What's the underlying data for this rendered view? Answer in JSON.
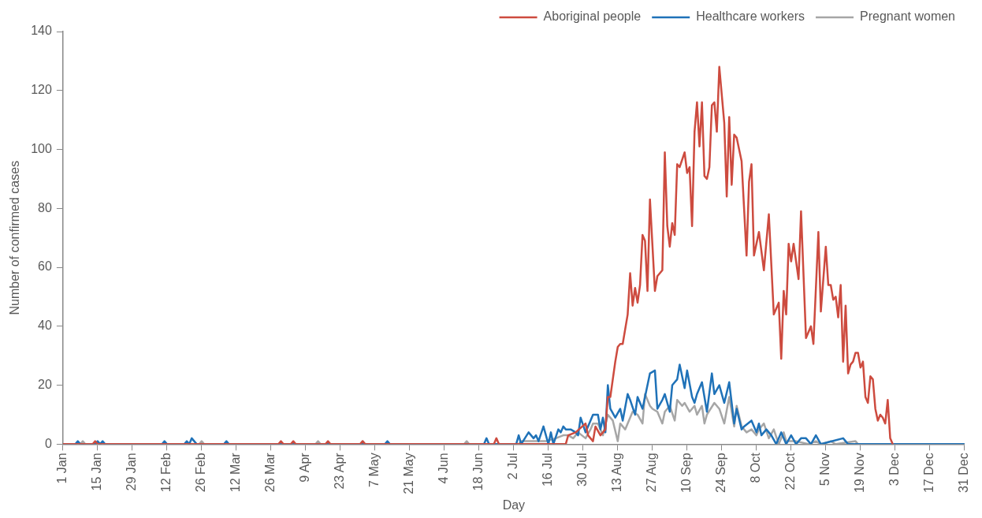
{
  "chart_data": {
    "type": "line",
    "xlabel": "Day",
    "ylabel": "Number of confirmed cases",
    "legend": "top right",
    "grid": false,
    "marker": "none",
    "line_style": "solid",
    "xlim": [
      "--01-01",
      "--12-31"
    ],
    "xticks": [
      {
        "value": "--01-01",
        "label": "1 Jan"
      },
      {
        "value": "--01-15",
        "label": "15 Jan"
      },
      {
        "value": "--01-29",
        "label": "29 Jan"
      },
      {
        "value": "--02-12",
        "label": "12 Feb"
      },
      {
        "value": "--02-26",
        "label": "26 Feb"
      },
      {
        "value": "--03-12",
        "label": "12 Mar"
      },
      {
        "value": "--03-26",
        "label": "26 Mar"
      },
      {
        "value": "--04-09",
        "label": "9 Apr"
      },
      {
        "value": "--04-23",
        "label": "23 Apr"
      },
      {
        "value": "--05-07",
        "label": "7 May"
      },
      {
        "value": "--05-21",
        "label": "21 May"
      },
      {
        "value": "--06-04",
        "label": "4 Jun"
      },
      {
        "value": "--06-18",
        "label": "18 Jun"
      },
      {
        "value": "--07-02",
        "label": "2 Jul"
      },
      {
        "value": "--07-16",
        "label": "16 Jul"
      },
      {
        "value": "--07-30",
        "label": "30 Jul"
      },
      {
        "value": "--08-13",
        "label": "13 Aug"
      },
      {
        "value": "--08-27",
        "label": "27 Aug"
      },
      {
        "value": "--09-10",
        "label": "10 Sep"
      },
      {
        "value": "--09-24",
        "label": "24 Sep"
      },
      {
        "value": "--10-08",
        "label": "8 Oct"
      },
      {
        "value": "--10-22",
        "label": "22 Oct"
      },
      {
        "value": "--11-05",
        "label": "5 Nov"
      },
      {
        "value": "--11-19",
        "label": "19 Nov"
      },
      {
        "value": "--12-03",
        "label": "3 Dec"
      },
      {
        "value": "--12-17",
        "label": "17 Dec"
      },
      {
        "value": "--12-31",
        "label": "31 Dec"
      }
    ],
    "ylim": [
      0,
      140
    ],
    "yticks": [
      0,
      20,
      40,
      60,
      80,
      100,
      120,
      140
    ],
    "series": [
      {
        "name": "Aboriginal people",
        "color": "#cd4b3f",
        "x": [
          "--01-01",
          "--01-13",
          "--01-14",
          "--01-15",
          "--03-29",
          "--03-30",
          "--03-31",
          "--04-03",
          "--04-04",
          "--04-05",
          "--04-17",
          "--04-18",
          "--04-19",
          "--05-01",
          "--05-02",
          "--05-03",
          "--06-24",
          "--06-25",
          "--06-26",
          "--07-23",
          "--07-24",
          "--07-27",
          "--07-31",
          "--08-01",
          "--08-03",
          "--08-04",
          "--08-06",
          "--08-08",
          "--08-09",
          "--08-10",
          "--08-12",
          "--08-13",
          "--08-14",
          "--08-15",
          "--08-17",
          "--08-18",
          "--08-19",
          "--08-20",
          "--08-21",
          "--08-22",
          "--08-23",
          "--08-24",
          "--08-25",
          "--08-26",
          "--08-28",
          "--08-29",
          "--08-31",
          "--09-01",
          "--09-02",
          "--09-03",
          "--09-04",
          "--09-05",
          "--09-06",
          "--09-07",
          "--09-09",
          "--09-10",
          "--09-11",
          "--09-12",
          "--09-13",
          "--09-14",
          "--09-15",
          "--09-16",
          "--09-17",
          "--09-18",
          "--09-19",
          "--09-20",
          "--09-21",
          "--09-22",
          "--09-23",
          "--09-25",
          "--09-26",
          "--09-27",
          "--09-28",
          "--09-29",
          "--09-30",
          "--10-02",
          "--10-04",
          "--10-05",
          "--10-06",
          "--10-07",
          "--10-09",
          "--10-11",
          "--10-13",
          "--10-15",
          "--10-17",
          "--10-18",
          "--10-19",
          "--10-20",
          "--10-21",
          "--10-22",
          "--10-23",
          "--10-25",
          "--10-26",
          "--10-28",
          "--10-30",
          "--10-31",
          "--11-02",
          "--11-03",
          "--11-05",
          "--11-06",
          "--11-07",
          "--11-08",
          "--11-09",
          "--11-10",
          "--11-11",
          "--11-12",
          "--11-13",
          "--11-14",
          "--11-15",
          "--11-16",
          "--11-17",
          "--11-18",
          "--11-19",
          "--11-20",
          "--11-21",
          "--11-22",
          "--11-23",
          "--11-24",
          "--11-25",
          "--11-26",
          "--11-27",
          "--11-28",
          "--11-29",
          "--11-30",
          "--12-01",
          "--12-02"
        ],
        "values": [
          0,
          0,
          1,
          0,
          0,
          1,
          0,
          0,
          1,
          0,
          0,
          1,
          0,
          0,
          1,
          0,
          0,
          2,
          0,
          0,
          3,
          4,
          7,
          3,
          1,
          6,
          3,
          5,
          16,
          16,
          28,
          33,
          34,
          34,
          44,
          58,
          47,
          53,
          48,
          54,
          71,
          69,
          52,
          83,
          52,
          57,
          59,
          99,
          74,
          67,
          75,
          71,
          95,
          94,
          99,
          92,
          94,
          74,
          106,
          116,
          101,
          116,
          91,
          90,
          94,
          115,
          116,
          106,
          128,
          109,
          84,
          111,
          88,
          105,
          104,
          96,
          64,
          89,
          95,
          64,
          72,
          59,
          78,
          44,
          48,
          29,
          52,
          44,
          68,
          62,
          68,
          56,
          79,
          36,
          40,
          34,
          72,
          45,
          67,
          54,
          54,
          49,
          50,
          43,
          54,
          28,
          47,
          24,
          27,
          28,
          31,
          31,
          26,
          28,
          16,
          14,
          23,
          22,
          12,
          8,
          10,
          9,
          7,
          15,
          2,
          0
        ]
      },
      {
        "name": "Healthcare workers",
        "color": "#1f72b8",
        "x": [
          "--01-01",
          "--01-06",
          "--01-07",
          "--01-08",
          "--01-14",
          "--01-15",
          "--01-16",
          "--01-17",
          "--01-18",
          "--02-10",
          "--02-11",
          "--02-12",
          "--02-19",
          "--02-20",
          "--02-21",
          "--02-22",
          "--02-23",
          "--02-24",
          "--03-07",
          "--03-08",
          "--03-09",
          "--05-11",
          "--05-12",
          "--05-13",
          "--06-20",
          "--06-21",
          "--06-22",
          "--07-03",
          "--07-04",
          "--07-05",
          "--07-08",
          "--07-10",
          "--07-11",
          "--07-12",
          "--07-14",
          "--07-15",
          "--07-16",
          "--07-17",
          "--07-18",
          "--07-20",
          "--07-21",
          "--07-22",
          "--07-23",
          "--07-25",
          "--07-27",
          "--07-28",
          "--07-29",
          "--07-31",
          "--08-01",
          "--08-03",
          "--08-05",
          "--08-06",
          "--08-07",
          "--08-08",
          "--08-09",
          "--08-10",
          "--08-12",
          "--08-14",
          "--08-15",
          "--08-17",
          "--08-18",
          "--08-20",
          "--08-21",
          "--08-23",
          "--08-24",
          "--08-26",
          "--08-28",
          "--08-29",
          "--08-31",
          "--09-01",
          "--09-03",
          "--09-04",
          "--09-06",
          "--09-07",
          "--09-09",
          "--09-10",
          "--09-12",
          "--09-13",
          "--09-14",
          "--09-16",
          "--09-18",
          "--09-20",
          "--09-21",
          "--09-23",
          "--09-25",
          "--09-27",
          "--09-29",
          "--09-30",
          "--10-02",
          "--10-03",
          "--10-06",
          "--10-08",
          "--10-09",
          "--10-10",
          "--10-12",
          "--10-14",
          "--10-16",
          "--10-18",
          "--10-20",
          "--10-22",
          "--10-24",
          "--10-26",
          "--10-28",
          "--10-30",
          "--11-01",
          "--11-03",
          "--11-12",
          "--11-14",
          "--12-31"
        ],
        "values": [
          0,
          0,
          1,
          0,
          0,
          1,
          0,
          1,
          0,
          0,
          1,
          0,
          0,
          1,
          0,
          2,
          1,
          0,
          0,
          1,
          0,
          0,
          1,
          0,
          0,
          2,
          0,
          0,
          3,
          0,
          4,
          2,
          3,
          1,
          6,
          3,
          0,
          4,
          0,
          5,
          4,
          6,
          5,
          5,
          4,
          3,
          9,
          4,
          6,
          10,
          10,
          5,
          9,
          4,
          20,
          12,
          9,
          12,
          8,
          17,
          15,
          10,
          16,
          12,
          16,
          24,
          25,
          12,
          15,
          17,
          11,
          20,
          22,
          27,
          19,
          25,
          16,
          14,
          17,
          21,
          11,
          24,
          17,
          20,
          14,
          21,
          7,
          12,
          5,
          6,
          8,
          4,
          7,
          3,
          5,
          3,
          0,
          4,
          0,
          3,
          0,
          2,
          2,
          0,
          3,
          0,
          2,
          0,
          0
        ]
      },
      {
        "name": "Pregnant women",
        "color": "#a6a6a6",
        "x": [
          "--01-01",
          "--01-08",
          "--01-09",
          "--01-10",
          "--02-25",
          "--02-26",
          "--02-27",
          "--04-13",
          "--04-14",
          "--04-15",
          "--05-01",
          "--05-02",
          "--05-03",
          "--06-12",
          "--06-13",
          "--06-14",
          "--07-04",
          "--07-05",
          "--07-09",
          "--07-15",
          "--07-19",
          "--07-22",
          "--07-24",
          "--07-26",
          "--07-28",
          "--07-31",
          "--08-02",
          "--08-03",
          "--08-05",
          "--08-07",
          "--08-09",
          "--08-11",
          "--08-13",
          "--08-14",
          "--08-16",
          "--08-18",
          "--08-19",
          "--08-21",
          "--08-23",
          "--08-24",
          "--08-26",
          "--08-27",
          "--08-29",
          "--08-31",
          "--09-01",
          "--09-03",
          "--09-05",
          "--09-06",
          "--09-08",
          "--09-09",
          "--09-11",
          "--09-13",
          "--09-14",
          "--09-16",
          "--09-17",
          "--09-18",
          "--09-21",
          "--09-23",
          "--09-25",
          "--09-27",
          "--09-29",
          "--09-30",
          "--10-02",
          "--10-04",
          "--10-06",
          "--10-08",
          "--10-09",
          "--10-11",
          "--10-13",
          "--10-15",
          "--10-17",
          "--10-19",
          "--10-20",
          "--10-24",
          "--10-29",
          "--11-01",
          "--11-03",
          "--11-07",
          "--11-09",
          "--11-17",
          "--11-18",
          "--12-31"
        ],
        "values": [
          0,
          0,
          1,
          0,
          0,
          1,
          0,
          0,
          1,
          0,
          0,
          1,
          0,
          0,
          1,
          0,
          0,
          1,
          1,
          1,
          2,
          3,
          3,
          2,
          4,
          2,
          5,
          7,
          7,
          3,
          10,
          8,
          1,
          7,
          5,
          9,
          11,
          10,
          7,
          17,
          13,
          12,
          11,
          7,
          11,
          13,
          8,
          15,
          13,
          14,
          11,
          13,
          10,
          13,
          7,
          10,
          14,
          12,
          7,
          16,
          6,
          13,
          6,
          4,
          5,
          3,
          5,
          7,
          2,
          5,
          0,
          4,
          1,
          1,
          0,
          1,
          0,
          1,
          0,
          1,
          0,
          0
        ]
      }
    ]
  }
}
